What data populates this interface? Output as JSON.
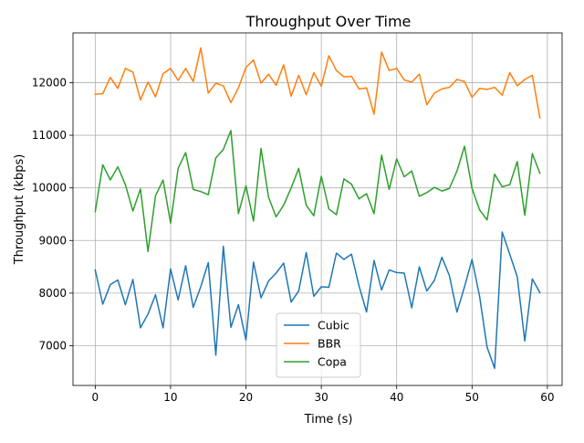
{
  "chart_data": {
    "type": "line",
    "title": "Throughput Over Time",
    "xlabel": "Time (s)",
    "ylabel": "Throughput (kbps)",
    "xlim": [
      -2.95,
      61.95
    ],
    "ylim": [
      6245,
      12945
    ],
    "xticks": [
      0,
      10,
      20,
      30,
      40,
      50,
      60
    ],
    "yticks": [
      7000,
      8000,
      9000,
      10000,
      11000,
      12000
    ],
    "grid": true,
    "legend_position": "lower-center",
    "x": [
      0,
      1,
      2,
      3,
      4,
      5,
      6,
      7,
      8,
      9,
      10,
      11,
      12,
      13,
      14,
      15,
      16,
      17,
      18,
      19,
      20,
      21,
      22,
      23,
      24,
      25,
      26,
      27,
      28,
      29,
      30,
      31,
      32,
      33,
      34,
      35,
      36,
      37,
      38,
      39,
      40,
      41,
      42,
      43,
      44,
      45,
      46,
      47,
      48,
      49,
      50,
      51,
      52,
      53,
      54,
      55,
      56,
      57,
      58,
      59
    ],
    "series": [
      {
        "name": "Cubic",
        "color": "#1f77b4",
        "values": [
          8440,
          7790,
          8160,
          8250,
          7780,
          8260,
          7340,
          7600,
          7970,
          7340,
          8460,
          7870,
          8520,
          7730,
          8120,
          8580,
          6820,
          8890,
          7350,
          7780,
          7110,
          8590,
          7910,
          8230,
          8380,
          8570,
          7830,
          8040,
          8770,
          7940,
          8120,
          8110,
          8760,
          8640,
          8740,
          8140,
          7640,
          8620,
          8060,
          8440,
          8390,
          8380,
          7720,
          8500,
          8040,
          8240,
          8680,
          8330,
          7640,
          8120,
          8640,
          7940,
          6970,
          6570,
          9160,
          8740,
          8310,
          7090,
          8270,
          8010
        ]
      },
      {
        "name": "BBR",
        "color": "#ff7f0e",
        "values": [
          11780,
          11790,
          12100,
          11890,
          12270,
          12200,
          11670,
          12010,
          11730,
          12170,
          12270,
          12040,
          12270,
          12020,
          12660,
          11800,
          11990,
          11940,
          11620,
          11900,
          12290,
          12430,
          11990,
          12160,
          11950,
          12340,
          11740,
          12140,
          11770,
          12190,
          11930,
          12510,
          12230,
          12110,
          12120,
          11880,
          11900,
          11400,
          12580,
          12230,
          12270,
          12050,
          12010,
          12160,
          11580,
          11800,
          11880,
          11910,
          12060,
          12020,
          11720,
          11890,
          11870,
          11910,
          11760,
          12190,
          11940,
          12060,
          12140,
          11330
        ]
      },
      {
        "name": "Copa",
        "color": "#2ca02c",
        "values": [
          9550,
          10440,
          10150,
          10400,
          10060,
          9560,
          9980,
          8790,
          9850,
          10150,
          9330,
          10370,
          10670,
          9970,
          9930,
          9870,
          10570,
          10730,
          11090,
          9510,
          10040,
          9370,
          10750,
          9820,
          9450,
          9670,
          10000,
          10370,
          9670,
          9470,
          10220,
          9600,
          9490,
          10170,
          10070,
          9790,
          9890,
          9510,
          10620,
          9970,
          10550,
          10210,
          10320,
          9840,
          9910,
          10010,
          9940,
          9990,
          10320,
          10790,
          9990,
          9580,
          9390,
          10260,
          10020,
          10060,
          10500,
          9480,
          10650,
          10280
        ]
      }
    ]
  }
}
